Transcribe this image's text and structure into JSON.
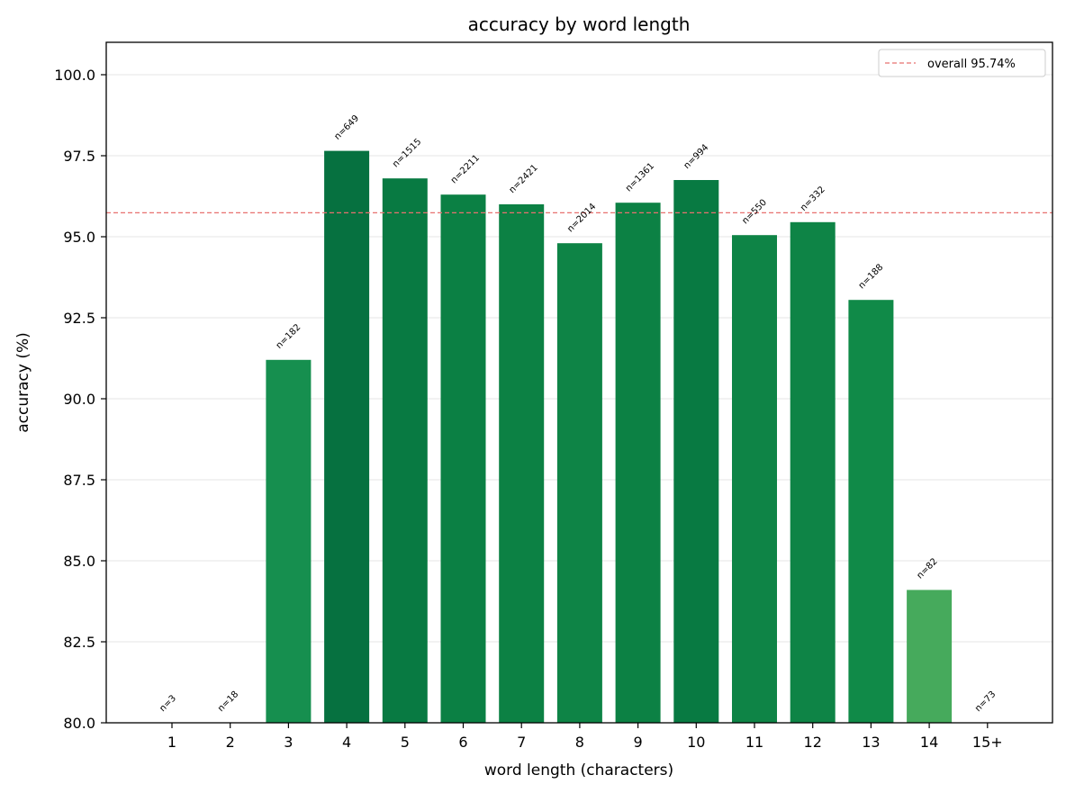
{
  "chart_data": {
    "type": "bar",
    "title": "accuracy by word length",
    "xlabel": "word length (characters)",
    "ylabel": "accuracy (%)",
    "categories": [
      "1",
      "2",
      "3",
      "4",
      "5",
      "6",
      "7",
      "8",
      "9",
      "10",
      "11",
      "12",
      "13",
      "14",
      "15+"
    ],
    "values": [
      null,
      null,
      91.2,
      97.65,
      96.8,
      96.3,
      96.0,
      94.8,
      96.05,
      96.75,
      95.05,
      95.45,
      93.05,
      84.1,
      null
    ],
    "counts": [
      "n=3",
      "n=18",
      "n=182",
      "n=649",
      "n=1515",
      "n=2211",
      "n=2421",
      "n=2014",
      "n=1361",
      "n=994",
      "n=550",
      "n=332",
      "n=188",
      "n=82",
      "n=73"
    ],
    "bar_colors": [
      "#1a9850",
      "#1a9850",
      "#168f4f",
      "#067140",
      "#087a42",
      "#0b8044",
      "#0c8144",
      "#0e8446",
      "#0c8144",
      "#087a42",
      "#0e8446",
      "#0e8446",
      "#108a48",
      "#46aa5c",
      "#1a9850"
    ],
    "ylim": [
      80.0,
      101.0
    ],
    "yticks": [
      "80.0",
      "82.5",
      "85.0",
      "87.5",
      "90.0",
      "92.5",
      "95.0",
      "97.5",
      "100.0"
    ],
    "grid": "horizontal",
    "reference_line": {
      "value": 95.74,
      "label": "overall 95.74%",
      "color": "#e8706f",
      "style": "dashed"
    },
    "legend": {
      "placement": "top-right",
      "entries": [
        "overall 95.74%"
      ]
    }
  }
}
